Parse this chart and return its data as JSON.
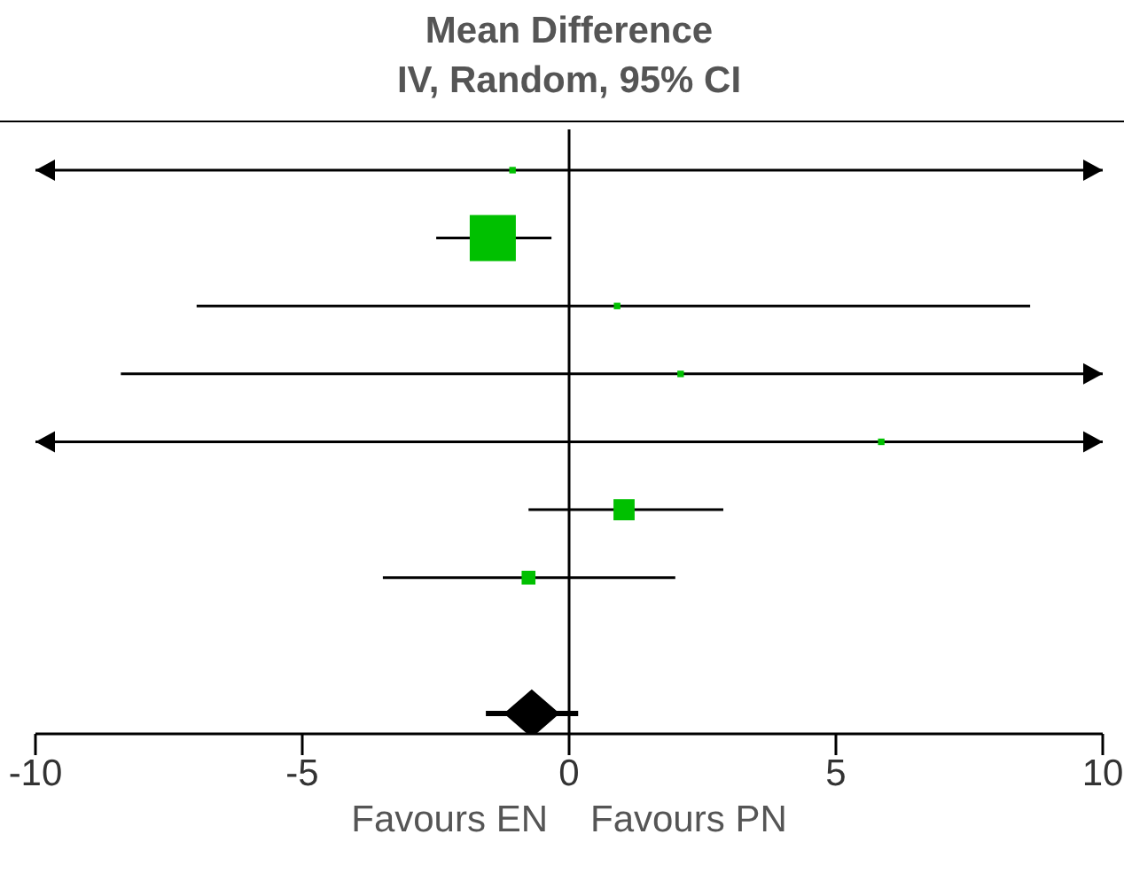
{
  "chart_data": {
    "type": "scatter",
    "title": "Mean Difference",
    "subtitle": "IV, Random, 95% CI",
    "orientation": "horizontal",
    "categories": [
      null,
      null,
      null,
      null,
      null,
      null,
      null,
      null,
      null
    ],
    "series": [
      {
        "type": "bubble",
        "marker": "square",
        "color": "#00c000",
        "values": [
          -1.06,
          -1.43,
          0.9,
          2.09,
          5.85,
          1.03,
          -0.76,
          null,
          null
        ],
        "errors": [
          [
            -10,
            10
          ],
          [
            -2.49,
            -0.33
          ],
          [
            -6.98,
            8.64
          ],
          [
            -8.4,
            10
          ],
          [
            -10,
            10
          ],
          [
            -0.76,
            2.89
          ],
          [
            -3.49,
            1.99
          ],
          null,
          null
        ],
        "sizes": [
          0.02,
          1,
          0.02,
          0.02,
          0.02,
          0.21,
          0.09,
          null,
          null
        ]
      },
      {
        "type": "scatter",
        "marker": "diamond",
        "color": "#000000",
        "values": [
          null,
          null,
          null,
          null,
          null,
          null,
          null,
          null,
          -0.7
        ],
        "errors": [
          null,
          null,
          null,
          null,
          null,
          null,
          null,
          null,
          [
            -1.56,
            0.17
          ]
        ]
      }
    ],
    "xlim": [
      -10,
      10
    ],
    "xticks": [
      -10,
      -5,
      0,
      5,
      10
    ],
    "ref_lines": [
      {
        "axis": "x",
        "value": 0
      }
    ],
    "annotations": [
      "Favours EN",
      "Favours PN"
    ]
  }
}
